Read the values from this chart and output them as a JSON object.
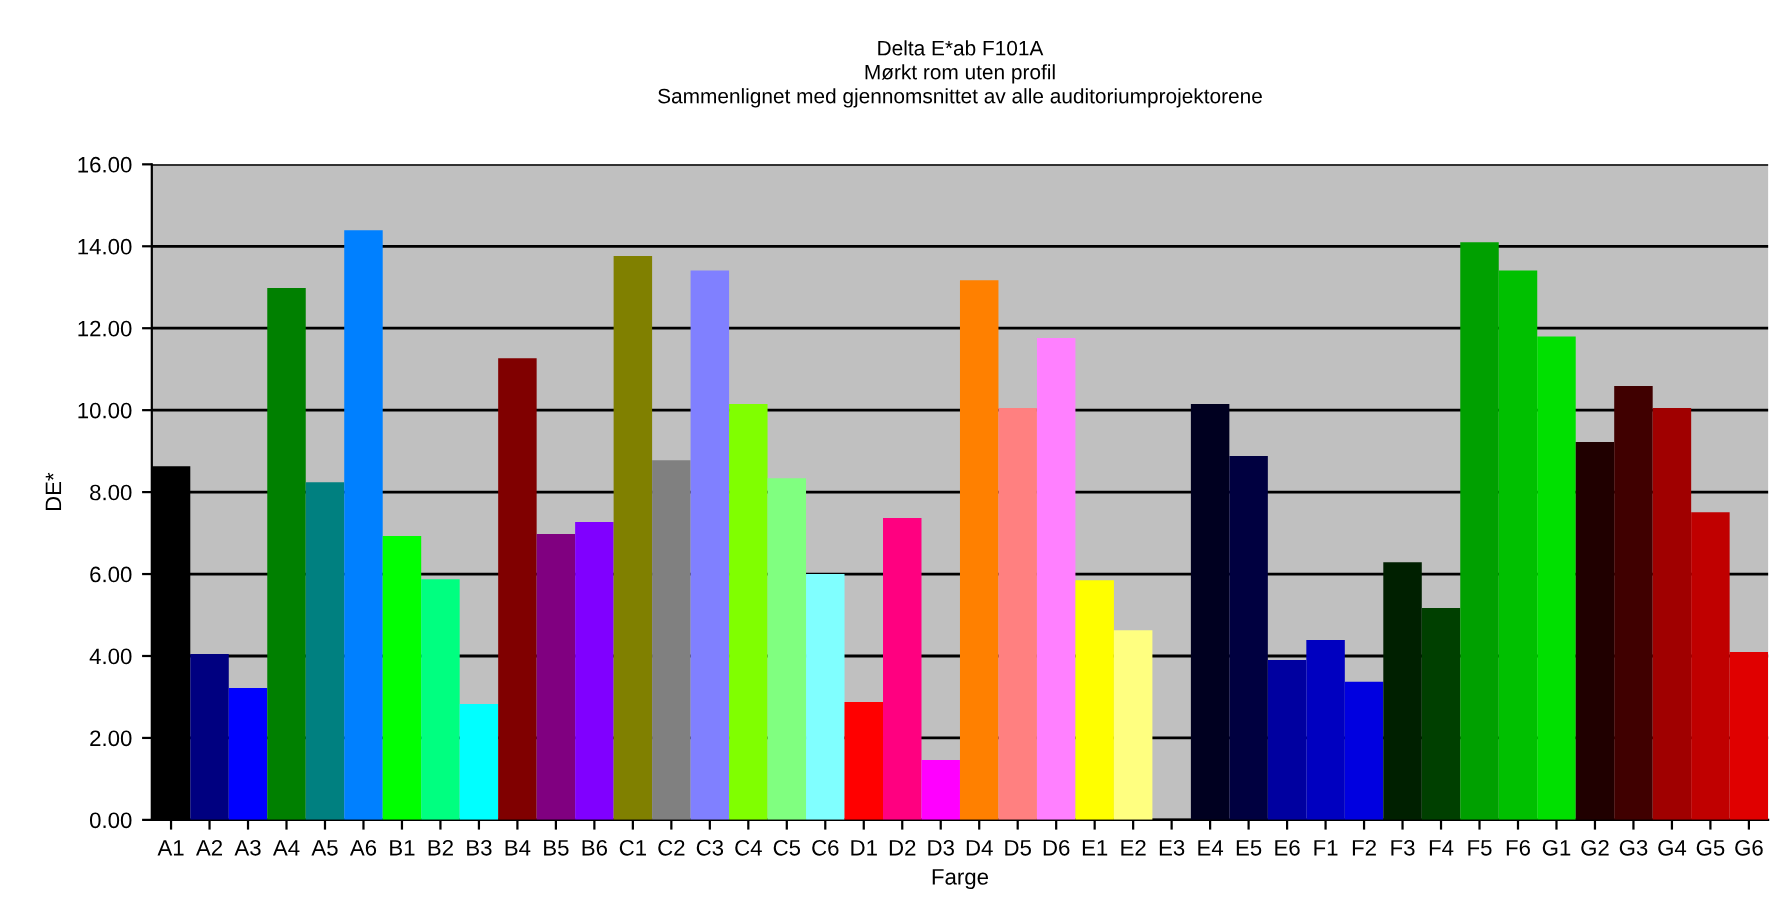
{
  "chart_data": {
    "type": "bar",
    "title": "Delta E*ab F101A\nMørkt rom uten profil\nSammenlignet med gjennomsnittet av alle auditoriumprojektorene",
    "xlabel": "Farge",
    "ylabel": "DE*",
    "categories": [
      "A1",
      "A2",
      "A3",
      "A4",
      "A5",
      "A6",
      "B1",
      "B2",
      "B3",
      "B4",
      "B5",
      "B6",
      "C1",
      "C2",
      "C3",
      "C4",
      "C5",
      "C6",
      "D1",
      "D2",
      "D3",
      "D4",
      "D5",
      "D6",
      "E1",
      "E2",
      "E3",
      "E4",
      "E5",
      "E6",
      "F1",
      "F2",
      "F3",
      "F4",
      "F5",
      "F6",
      "G1",
      "G2",
      "G3",
      "G4",
      "G5",
      "G6"
    ],
    "values": [
      8.63,
      4.05,
      3.22,
      12.98,
      8.24,
      14.39,
      6.93,
      5.87,
      2.83,
      11.27,
      6.98,
      7.27,
      13.76,
      8.78,
      13.41,
      10.15,
      8.34,
      6.0,
      2.88,
      7.37,
      1.46,
      13.17,
      10.05,
      11.76,
      5.85,
      4.63,
      null,
      10.15,
      8.88,
      3.9,
      4.39,
      3.37,
      6.29,
      5.17,
      14.1,
      13.41,
      11.8,
      9.22,
      10.59,
      10.05,
      7.51,
      4.1
    ],
    "colors": [
      "#000000",
      "#000080",
      "#0000ff",
      "#008000",
      "#008080",
      "#0080ff",
      "#00ff00",
      "#00ff80",
      "#00ffff",
      "#800000",
      "#800080",
      "#8000ff",
      "#808000",
      "#808080",
      "#8080ff",
      "#80ff00",
      "#80ff80",
      "#80ffff",
      "#ff0000",
      "#ff0080",
      "#ff00ff",
      "#ff8000",
      "#ff8080",
      "#ff80ff",
      "#ffff00",
      "#ffff80",
      "#ffffff",
      "#000020",
      "#000040",
      "#0000a0",
      "#0000c0",
      "#0000e0",
      "#002000",
      "#004000",
      "#00a000",
      "#00c000",
      "#00e000",
      "#200000",
      "#400000",
      "#a00000",
      "#c00000",
      "#e00000"
    ],
    "ylim": [
      0,
      16
    ],
    "yticks": [
      {
        "value": 0,
        "label": "0.00"
      },
      {
        "value": 2,
        "label": "2.00"
      },
      {
        "value": 4,
        "label": "4.00"
      },
      {
        "value": 6,
        "label": "6.00"
      },
      {
        "value": 8,
        "label": "8.00"
      },
      {
        "value": 10,
        "label": "10.00"
      },
      {
        "value": 12,
        "label": "12.00"
      },
      {
        "value": 14,
        "label": "14.00"
      },
      {
        "value": 16,
        "label": "16.00"
      }
    ],
    "grid": "y",
    "legend": false
  }
}
